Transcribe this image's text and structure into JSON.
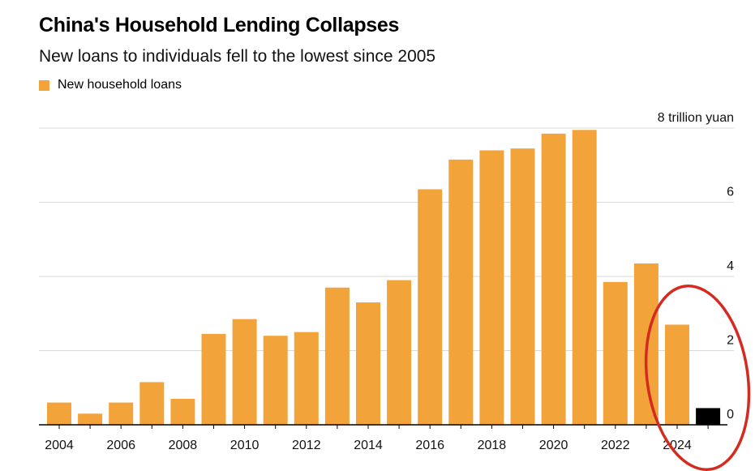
{
  "header": {
    "title": "China's Household Lending Collapses",
    "subtitle": "New loans to individuals fell to the lowest since 2005"
  },
  "chart_data": {
    "type": "bar",
    "title": "China's Household Lending Collapses",
    "subtitle": "New loans to individuals fell to the lowest since 2005",
    "unit_label": "8 trillion yuan",
    "xlabel": "",
    "ylabel": "trillion yuan",
    "ylim": [
      0,
      8
    ],
    "yticks": [
      "8 trillion yuan",
      "6",
      "4",
      "2",
      "0"
    ],
    "ytick_values": [
      8,
      6,
      4,
      2,
      0
    ],
    "grid": true,
    "legend_position": "top-left",
    "categories": [
      "2004",
      "2005",
      "2006",
      "2007",
      "2008",
      "2009",
      "2010",
      "2011",
      "2012",
      "2013",
      "2014",
      "2015",
      "2016",
      "2017",
      "2018",
      "2019",
      "2020",
      "2021",
      "2022",
      "2023",
      "2024",
      "2025"
    ],
    "xtick_labels": [
      "2004",
      "2006",
      "2008",
      "2010",
      "2012",
      "2014",
      "2016",
      "2018",
      "2020",
      "2022",
      "2024"
    ],
    "series": [
      {
        "name": "New household loans",
        "color": "#f2a43a",
        "values": [
          0.6,
          0.3,
          0.6,
          1.15,
          0.7,
          2.45,
          2.85,
          2.4,
          2.5,
          3.7,
          3.3,
          3.9,
          6.35,
          7.15,
          7.4,
          7.45,
          7.85,
          7.95,
          3.85,
          4.35,
          2.7,
          0.45
        ],
        "highlight_index": 21,
        "highlight_color": "#000000"
      }
    ],
    "annotations": [
      {
        "type": "circle",
        "color": "#d42a20",
        "target_categories": [
          "2024",
          "2025"
        ]
      }
    ]
  }
}
